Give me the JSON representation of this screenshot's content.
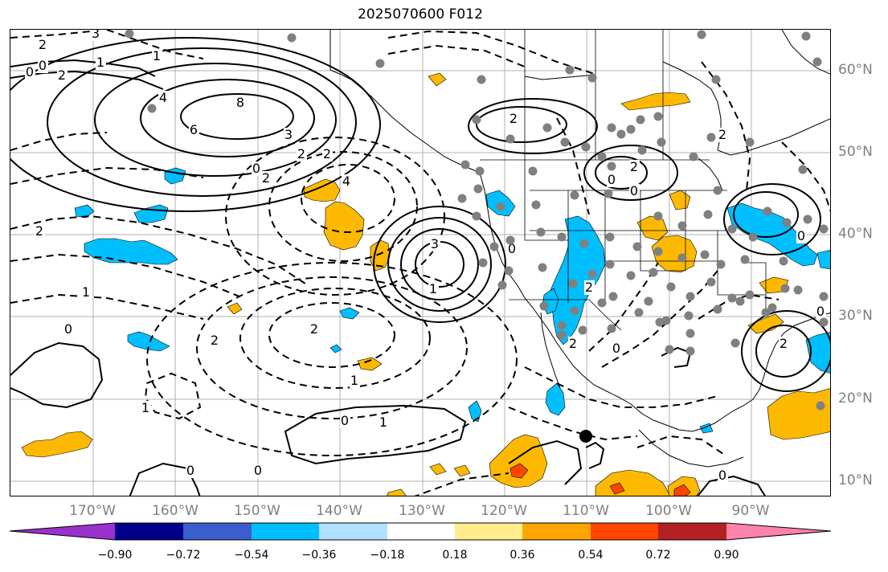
{
  "title": "2025070600 F012",
  "map": {
    "lon_labels": [
      "170°W",
      "160°W",
      "150°W",
      "140°W",
      "130°W",
      "120°W",
      "110°W",
      "100°W",
      "90°W"
    ],
    "lat_labels": [
      "60°N",
      "50°N",
      "40°N",
      "30°N",
      "20°N",
      "10°N"
    ],
    "contour_labels": [
      "3",
      "2",
      "0",
      "1",
      "2",
      "1",
      "0",
      "8",
      "6",
      "4",
      "3",
      "2",
      "0",
      "2",
      "2",
      "4",
      "2",
      "2",
      "3",
      "0",
      "1",
      "1",
      "2",
      "2",
      "1",
      "0",
      "0",
      "0",
      "1",
      "1",
      "0",
      "0",
      "2",
      "2",
      "2",
      "0",
      "0",
      "0",
      "0",
      "2",
      "2",
      "0"
    ],
    "colors": {
      "coastline": "#000000",
      "gridline": "#b0b0b0",
      "station": "#808080",
      "marker": "#000000",
      "pos_low": "#fdb900",
      "pos_mid": "#fe4500",
      "neg_low": "#00bfff"
    }
  },
  "colorbar": {
    "ticks": [
      "−0.90",
      "−0.72",
      "−0.54",
      "−0.36",
      "−0.18",
      "0.18",
      "0.36",
      "0.54",
      "0.72",
      "0.90"
    ],
    "colors": [
      "#9932cc",
      "#00008b",
      "#3a5fcd",
      "#00bfff",
      "#b0e2ff",
      "#ffffff",
      "#ffec8b",
      "#ffa500",
      "#ff4500",
      "#b22222",
      "#ff82ab"
    ]
  }
}
